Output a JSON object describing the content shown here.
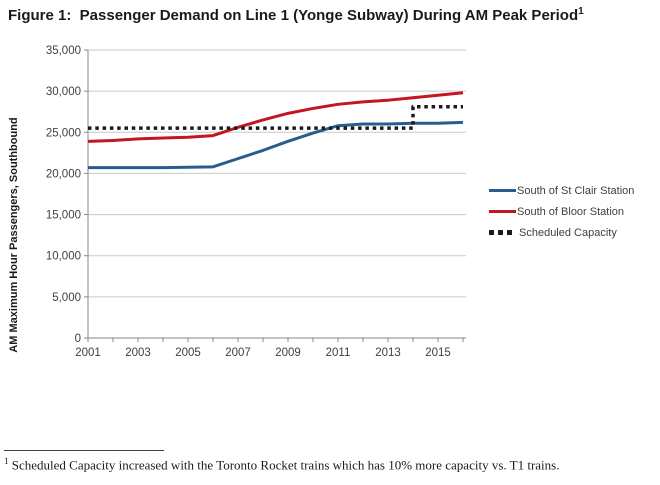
{
  "title": {
    "text": "Figure 1:  Passenger Demand on Line 1 (Yonge Subway) During AM Peak Period",
    "superscript": "1"
  },
  "chart_data": {
    "type": "line",
    "title": "",
    "y_axis_title": "AM Maximum Hour Passengers, Southbound",
    "xlim": [
      2001,
      2016
    ],
    "ylim": [
      0,
      35000
    ],
    "y_tick_step": 5000,
    "x_tick_step_years": 1,
    "x_label_years": [
      2001,
      2003,
      2005,
      2007,
      2009,
      2011,
      2013,
      2015
    ],
    "y_tick_labels": [
      "0",
      "5,000",
      "10,000",
      "15,000",
      "20,000",
      "25,000",
      "30,000",
      "35,000"
    ],
    "grid": true,
    "legend_position": "right",
    "colors": {
      "gridline": "#c9c9c9",
      "axis": "#898989",
      "tick_text": "#3f3f3f"
    },
    "series": [
      {
        "name": "South of St Clair Station",
        "color": "#2a5d8f",
        "style": "solid",
        "points": [
          [
            2001,
            20700
          ],
          [
            2002,
            20700
          ],
          [
            2003,
            20700
          ],
          [
            2004,
            20700
          ],
          [
            2005,
            20750
          ],
          [
            2006,
            20800
          ],
          [
            2007,
            21800
          ],
          [
            2008,
            22800
          ],
          [
            2009,
            23900
          ],
          [
            2010,
            24900
          ],
          [
            2011,
            25800
          ],
          [
            2012,
            26000
          ],
          [
            2013,
            26000
          ],
          [
            2014,
            26100
          ],
          [
            2015,
            26100
          ],
          [
            2016,
            26200
          ]
        ]
      },
      {
        "name": "South of Bloor Station",
        "color": "#c41621",
        "style": "solid",
        "points": [
          [
            2001,
            23900
          ],
          [
            2002,
            24000
          ],
          [
            2003,
            24200
          ],
          [
            2004,
            24300
          ],
          [
            2005,
            24400
          ],
          [
            2006,
            24600
          ],
          [
            2007,
            25600
          ],
          [
            2008,
            26500
          ],
          [
            2009,
            27300
          ],
          [
            2010,
            27900
          ],
          [
            2011,
            28400
          ],
          [
            2012,
            28700
          ],
          [
            2013,
            28900
          ],
          [
            2014,
            29200
          ],
          [
            2015,
            29500
          ],
          [
            2016,
            29800
          ]
        ]
      },
      {
        "name": "Scheduled Capacity",
        "color": "#1a1a1a",
        "style": "dotted",
        "points": [
          [
            2001,
            25500
          ],
          [
            2014,
            25500
          ],
          [
            2014,
            28100
          ],
          [
            2016,
            28100
          ]
        ]
      }
    ]
  },
  "footnote": {
    "superscript": "1",
    "text": " Scheduled Capacity increased with the Toronto Rocket trains which has 10% more capacity vs. T1 trains."
  }
}
